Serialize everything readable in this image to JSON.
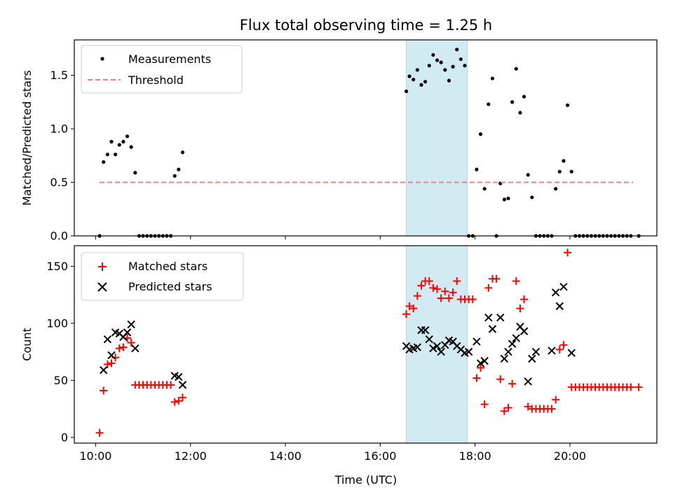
{
  "chart_data": [
    {
      "type": "scatter",
      "title": "Flux total observing time = 1.25 h",
      "xlabel": "",
      "ylabel": "Matched/Predicted stars",
      "xlim": [
        "09:33",
        "21:50"
      ],
      "ylim": [
        0,
        1.83
      ],
      "yticks": [
        "0.0",
        "0.5",
        "1.0",
        "1.5"
      ],
      "grid": false,
      "legend": "top-left",
      "shaded_interval": [
        "16:33",
        "17:50"
      ],
      "shade_color": "#add8e6",
      "series": [
        {
          "name": "Measurements",
          "marker": "dot",
          "color": "#000000",
          "x": [
            "10:05",
            "10:10",
            "10:15",
            "10:20",
            "10:25",
            "10:30",
            "10:35",
            "10:40",
            "10:45",
            "10:50",
            "10:55",
            "11:00",
            "11:05",
            "11:10",
            "11:15",
            "11:20",
            "11:25",
            "11:30",
            "11:35",
            "11:40",
            "11:45",
            "11:50",
            "16:33",
            "16:37",
            "16:42",
            "16:47",
            "16:52",
            "16:57",
            "17:02",
            "17:07",
            "17:12",
            "17:17",
            "17:22",
            "17:27",
            "17:32",
            "17:37",
            "17:42",
            "17:47",
            "17:52",
            "17:57",
            "18:02",
            "18:07",
            "18:12",
            "18:17",
            "18:22",
            "18:27",
            "18:32",
            "18:37",
            "18:42",
            "18:47",
            "18:52",
            "18:57",
            "19:02",
            "19:07",
            "19:12",
            "19:17",
            "19:22",
            "19:27",
            "19:32",
            "19:37",
            "19:42",
            "19:47",
            "19:52",
            "19:57",
            "20:02",
            "20:07",
            "20:12",
            "20:17",
            "20:22",
            "20:27",
            "20:32",
            "20:37",
            "20:42",
            "20:47",
            "20:52",
            "20:57",
            "21:02",
            "21:07",
            "21:12",
            "21:17",
            "21:27"
          ],
          "y": [
            0.0,
            0.69,
            0.76,
            0.88,
            0.76,
            0.85,
            0.88,
            0.93,
            0.83,
            0.59,
            0.0,
            0.0,
            0.0,
            0.0,
            0.0,
            0.0,
            0.0,
            0.0,
            0.0,
            0.56,
            0.62,
            0.78,
            1.35,
            1.49,
            1.46,
            1.55,
            1.41,
            1.44,
            1.59,
            1.69,
            1.64,
            1.62,
            1.55,
            1.45,
            1.58,
            1.74,
            1.65,
            1.59,
            0.0,
            0.0,
            0.62,
            0.95,
            0.44,
            1.23,
            1.47,
            0.0,
            0.49,
            0.34,
            0.35,
            1.25,
            1.56,
            1.15,
            1.3,
            0.57,
            0.36,
            0.0,
            0.0,
            0.0,
            0.0,
            0.0,
            0.44,
            0.6,
            0.7,
            1.22,
            0.6,
            0.0,
            0.0,
            0.0,
            0.0,
            0.0,
            0.0,
            0.0,
            0.0,
            0.0,
            0.0,
            0.0,
            0.0,
            0.0,
            0.0,
            0.0,
            0.0
          ]
        },
        {
          "name": "Threshold",
          "line": "dashed",
          "color": "#f08080",
          "x": [
            "10:05",
            "21:20"
          ],
          "y": [
            0.5,
            0.5
          ]
        }
      ]
    },
    {
      "type": "scatter",
      "title": "",
      "xlabel": "Time (UTC)",
      "ylabel": "Count",
      "xlim": [
        "09:33",
        "21:50"
      ],
      "ylim": [
        -5,
        168
      ],
      "yticks": [
        "0",
        "50",
        "100",
        "150"
      ],
      "xticks": [
        "10:00",
        "12:00",
        "14:00",
        "16:00",
        "18:00",
        "20:00"
      ],
      "grid": false,
      "legend": "top-left",
      "shaded_interval": [
        "16:33",
        "17:50"
      ],
      "shade_color": "#add8e6",
      "series": [
        {
          "name": "Matched stars",
          "marker": "plus",
          "color": "#ff0000",
          "x": [
            "10:05",
            "10:10",
            "10:15",
            "10:20",
            "10:25",
            "10:30",
            "10:35",
            "10:40",
            "10:45",
            "10:50",
            "10:55",
            "11:00",
            "11:05",
            "11:10",
            "11:15",
            "11:20",
            "11:25",
            "11:30",
            "11:35",
            "11:40",
            "11:45",
            "11:50",
            "16:33",
            "16:37",
            "16:42",
            "16:47",
            "16:52",
            "16:57",
            "17:02",
            "17:07",
            "17:12",
            "17:17",
            "17:22",
            "17:27",
            "17:32",
            "17:37",
            "17:42",
            "17:47",
            "17:52",
            "17:57",
            "18:02",
            "18:07",
            "18:12",
            "18:17",
            "18:22",
            "18:27",
            "18:32",
            "18:37",
            "18:42",
            "18:47",
            "18:52",
            "18:57",
            "19:02",
            "19:07",
            "19:12",
            "19:17",
            "19:22",
            "19:27",
            "19:32",
            "19:37",
            "19:42",
            "19:47",
            "19:52",
            "19:57",
            "20:02",
            "20:07",
            "20:12",
            "20:17",
            "20:22",
            "20:27",
            "20:32",
            "20:37",
            "20:42",
            "20:47",
            "20:52",
            "20:57",
            "21:02",
            "21:07",
            "21:12",
            "21:17",
            "21:27"
          ],
          "y": [
            4,
            41,
            64,
            65,
            70,
            78,
            79,
            87,
            83,
            46,
            46,
            46,
            46,
            46,
            46,
            46,
            46,
            46,
            46,
            31,
            32,
            35,
            108,
            115,
            113,
            124,
            133,
            137,
            137,
            131,
            130,
            122,
            128,
            122,
            127,
            137,
            121,
            121,
            121,
            121,
            52,
            61,
            29,
            131,
            139,
            139,
            51,
            23,
            26,
            47,
            137,
            113,
            121,
            27,
            25,
            25,
            25,
            25,
            25,
            25,
            33,
            77,
            81,
            162,
            44,
            44,
            44,
            44,
            44,
            44,
            44,
            44,
            44,
            44,
            44,
            44,
            44,
            44,
            44,
            44,
            44
          ]
        },
        {
          "name": "Predicted stars",
          "marker": "x",
          "color": "#000000",
          "x": [
            "10:10",
            "10:15",
            "10:20",
            "10:25",
            "10:30",
            "10:35",
            "10:40",
            "10:45",
            "10:50",
            "11:40",
            "11:45",
            "11:50",
            "16:33",
            "16:37",
            "16:42",
            "16:47",
            "16:52",
            "16:57",
            "17:02",
            "17:07",
            "17:12",
            "17:17",
            "17:22",
            "17:27",
            "17:32",
            "17:37",
            "17:42",
            "17:47",
            "17:52",
            "18:02",
            "18:07",
            "18:12",
            "18:17",
            "18:22",
            "18:32",
            "18:37",
            "18:42",
            "18:47",
            "18:52",
            "18:57",
            "19:02",
            "19:07",
            "19:12",
            "19:17",
            "19:37",
            "19:42",
            "19:47",
            "19:52",
            "20:02"
          ],
          "y": [
            59,
            86,
            72,
            92,
            91,
            88,
            92,
            99,
            78,
            54,
            53,
            46,
            80,
            77,
            78,
            79,
            94,
            94,
            86,
            78,
            80,
            75,
            81,
            85,
            84,
            80,
            77,
            74,
            75,
            84,
            65,
            67,
            105,
            95,
            105,
            69,
            75,
            82,
            87,
            97,
            93,
            49,
            69,
            75,
            76,
            127,
            115,
            132,
            74
          ]
        }
      ]
    }
  ]
}
